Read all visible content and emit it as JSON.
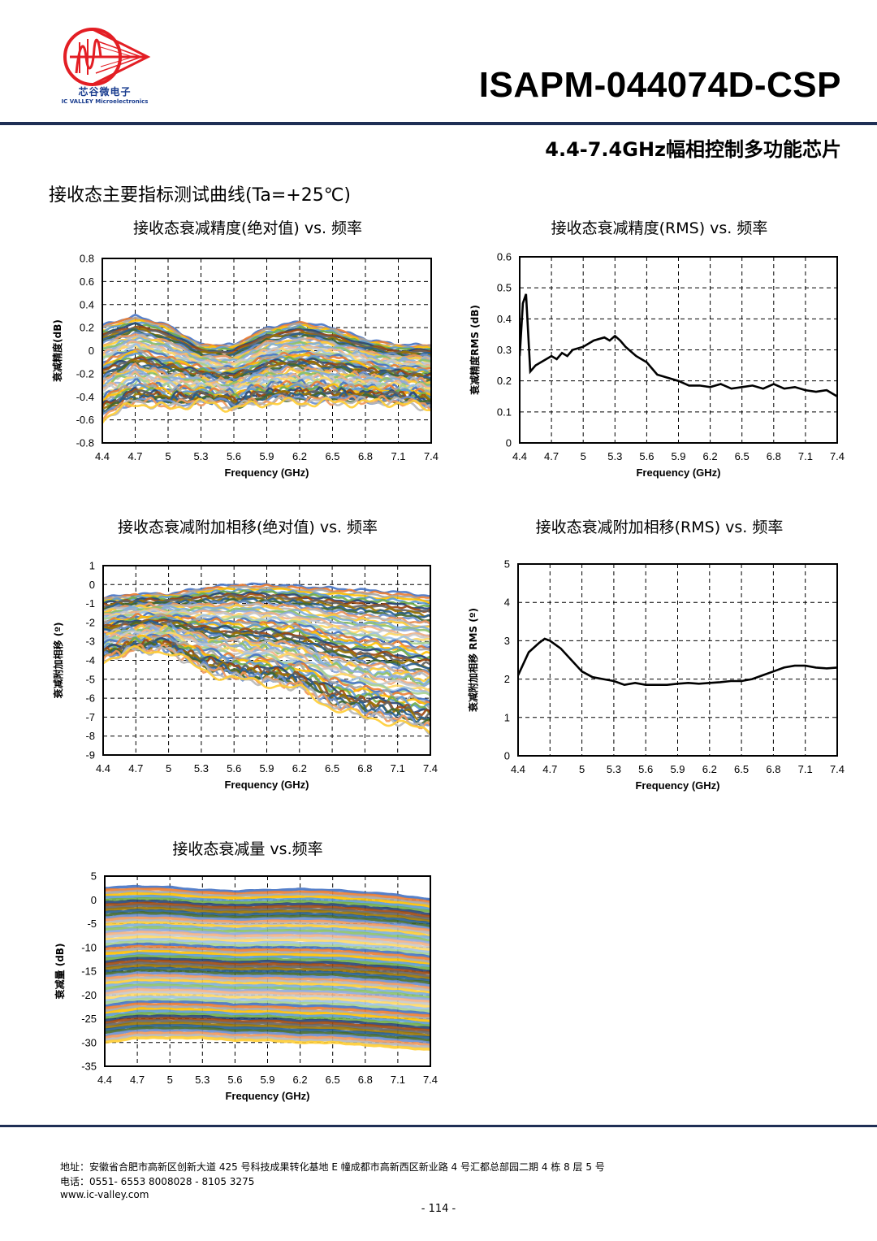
{
  "header": {
    "logo_cn": "芯谷微电子",
    "logo_en": "IC VALLEY Microelectronics",
    "logo_color": "#e31e24",
    "title": "ISAPM-044074D-CSP",
    "subtitle": "4.4-7.4GHz幅相控制多功能芯片"
  },
  "section_title": "接收态主要指标测试曲线(Ta=+25℃)",
  "chart_data": [
    {
      "id": "att-acc-abs",
      "type": "line",
      "title": "接收态衰减精度(绝对值) vs.  频率",
      "xlabel": "Frequency (GHz)",
      "ylabel": "衰减精度(dB)",
      "x_ticks": [
        4.4,
        4.7,
        5,
        5.3,
        5.6,
        5.9,
        6.2,
        6.5,
        6.8,
        7.1,
        7.4
      ],
      "xlim": [
        4.4,
        7.4
      ],
      "y_ticks": [
        0.8,
        0.6,
        0.4,
        0.2,
        0,
        -0.2,
        -0.4,
        -0.6,
        -0.8
      ],
      "ylim": [
        -0.8,
        0.8
      ],
      "grid": true,
      "series_count": 64,
      "envelope": {
        "x": [
          4.4,
          4.7,
          5,
          5.3,
          5.6,
          5.9,
          6.2,
          6.5,
          6.8,
          7.1,
          7.4
        ],
        "upper": [
          0.22,
          0.3,
          0.22,
          0.05,
          0.05,
          0.2,
          0.25,
          0.2,
          0.1,
          0.05,
          0.05
        ],
        "lower": [
          -0.6,
          -0.45,
          -0.5,
          -0.45,
          -0.5,
          -0.45,
          -0.45,
          -0.45,
          -0.45,
          -0.45,
          -0.5
        ]
      }
    },
    {
      "id": "att-acc-rms",
      "type": "line",
      "title": "接收态衰减精度(RMS) vs.  频率",
      "xlabel": "Frequency (GHz)",
      "ylabel": "衰减精度RMS (dB)",
      "x_ticks": [
        4.4,
        4.7,
        5,
        5.3,
        5.6,
        5.9,
        6.2,
        6.5,
        6.8,
        7.1,
        7.4
      ],
      "xlim": [
        4.4,
        7.4
      ],
      "y_ticks": [
        0.6,
        0.5,
        0.4,
        0.3,
        0.2,
        0.1,
        0
      ],
      "ylim": [
        0,
        0.6
      ],
      "grid": true,
      "series": [
        {
          "x": [
            4.4,
            4.43,
            4.46,
            4.5,
            4.55,
            4.6,
            4.7,
            4.75,
            4.8,
            4.85,
            4.9,
            5.0,
            5.1,
            5.2,
            5.25,
            5.3,
            5.35,
            5.4,
            5.5,
            5.6,
            5.7,
            5.8,
            5.9,
            6.0,
            6.1,
            6.2,
            6.3,
            6.4,
            6.5,
            6.6,
            6.7,
            6.8,
            6.9,
            7.0,
            7.1,
            7.2,
            7.3,
            7.4
          ],
          "y": [
            0.28,
            0.45,
            0.48,
            0.23,
            0.25,
            0.26,
            0.28,
            0.27,
            0.29,
            0.28,
            0.3,
            0.31,
            0.33,
            0.34,
            0.33,
            0.345,
            0.33,
            0.31,
            0.28,
            0.26,
            0.22,
            0.21,
            0.2,
            0.185,
            0.185,
            0.18,
            0.19,
            0.175,
            0.18,
            0.185,
            0.175,
            0.19,
            0.175,
            0.18,
            0.17,
            0.165,
            0.17,
            0.15
          ]
        }
      ]
    },
    {
      "id": "phase-abs",
      "type": "line",
      "title": "接收态衰减附加相移(绝对值) vs.  频率",
      "xlabel": "Frequency (GHz)",
      "ylabel": "衰减附加相移  (º)",
      "x_ticks": [
        4.4,
        4.7,
        5,
        5.3,
        5.6,
        5.9,
        6.2,
        6.5,
        6.8,
        7.1,
        7.4
      ],
      "xlim": [
        4.4,
        7.4
      ],
      "y_ticks": [
        1,
        0,
        -1,
        -2,
        -3,
        -4,
        -5,
        -6,
        -7,
        -8,
        -9
      ],
      "ylim": [
        -9,
        1
      ],
      "grid": true,
      "series_count": 64,
      "envelope": {
        "x": [
          4.4,
          4.7,
          5,
          5.3,
          5.6,
          5.9,
          6.2,
          6.5,
          6.8,
          7.1,
          7.4
        ],
        "upper": [
          -0.7,
          -0.5,
          -0.5,
          -0.2,
          0,
          0,
          -0.1,
          -0.2,
          -0.3,
          -0.4,
          -0.6
        ],
        "lower": [
          -4,
          -3.5,
          -3.5,
          -4.5,
          -5,
          -5.2,
          -5.5,
          -6.5,
          -7,
          -7.3,
          -7.8
        ]
      }
    },
    {
      "id": "phase-rms",
      "type": "line",
      "title": "接收态衰减附加相移(RMS) vs.  频率",
      "xlabel": "Frequency (GHz)",
      "ylabel": "衰减附加相移  RMS  (º)",
      "x_ticks": [
        4.4,
        4.7,
        5,
        5.3,
        5.6,
        5.9,
        6.2,
        6.5,
        6.8,
        7.1,
        7.4
      ],
      "xlim": [
        4.4,
        7.4
      ],
      "y_ticks": [
        5,
        4,
        3,
        2,
        1,
        0
      ],
      "ylim": [
        0,
        5
      ],
      "grid": true,
      "series": [
        {
          "x": [
            4.4,
            4.5,
            4.6,
            4.65,
            4.7,
            4.8,
            4.9,
            5.0,
            5.1,
            5.2,
            5.3,
            5.4,
            5.5,
            5.6,
            5.7,
            5.8,
            5.9,
            6.0,
            6.1,
            6.2,
            6.3,
            6.4,
            6.5,
            6.6,
            6.7,
            6.8,
            6.9,
            7.0,
            7.1,
            7.2,
            7.3,
            7.4
          ],
          "y": [
            2.1,
            2.7,
            2.95,
            3.05,
            3.0,
            2.8,
            2.5,
            2.2,
            2.05,
            2.0,
            1.95,
            1.85,
            1.9,
            1.85,
            1.85,
            1.85,
            1.88,
            1.9,
            1.88,
            1.9,
            1.92,
            1.95,
            1.95,
            2.0,
            2.1,
            2.2,
            2.3,
            2.35,
            2.35,
            2.3,
            2.28,
            2.3
          ]
        }
      ]
    },
    {
      "id": "att-amount",
      "type": "line",
      "title": "接收态衰减量  vs.频率",
      "xlabel": "Frequency (GHz)",
      "ylabel": "衰减量  (dB)",
      "x_ticks": [
        4.4,
        4.7,
        5,
        5.3,
        5.6,
        5.9,
        6.2,
        6.5,
        6.8,
        7.1,
        7.4
      ],
      "xlim": [
        4.4,
        7.4
      ],
      "y_ticks": [
        5,
        0,
        -5,
        -10,
        -15,
        -20,
        -25,
        -30,
        -35
      ],
      "ylim": [
        -35,
        5
      ],
      "grid": true,
      "series_count": 64,
      "envelope": {
        "x": [
          4.4,
          4.7,
          5,
          5.3,
          5.6,
          5.9,
          6.2,
          6.5,
          6.8,
          7.1,
          7.4
        ],
        "upper": [
          2.5,
          2.8,
          2.6,
          2.0,
          1.8,
          2.0,
          2.2,
          2.0,
          1.5,
          1.0,
          0
        ],
        "lower": [
          -30,
          -29,
          -29,
          -29,
          -29.5,
          -29.5,
          -30,
          -30,
          -30.5,
          -31,
          -31.5
        ]
      }
    }
  ],
  "footer": {
    "address": "地址：安徽省合肥市高新区创新大道 425 号科技成果转化基地 E 幢成都市高新西区新业路 4 号汇都总部园二期 4 栋 8 层 5 号",
    "phone": "电话：0551- 6553 8008028 - 8105 3275",
    "website": "www.ic-valley.com",
    "page": "- 114 -"
  }
}
